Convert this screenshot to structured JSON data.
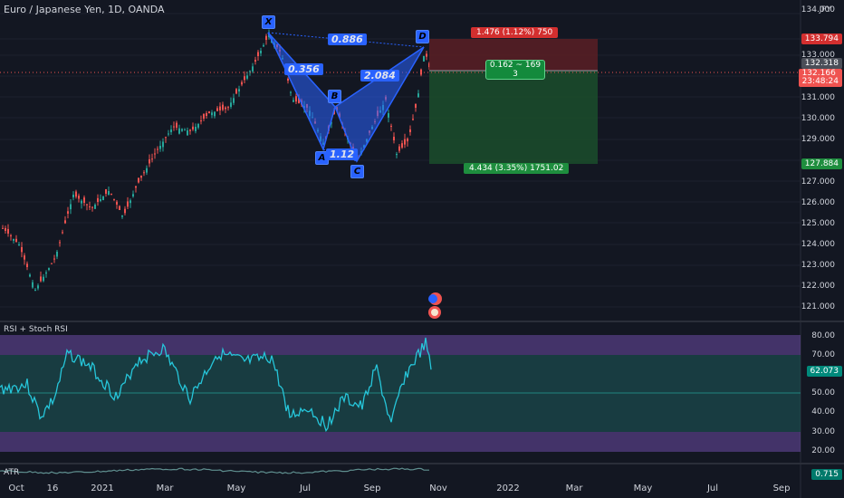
{
  "header": {
    "title": "Euro / Japanese Yen, 1D, OANDA",
    "currency": "JPY"
  },
  "price_axis": {
    "labels": [
      "121.000",
      "122.000",
      "123.000",
      "124.000",
      "125.000",
      "126.000",
      "127.000",
      "128.000",
      "129.000",
      "130.000",
      "131.000",
      "133.000"
    ],
    "top_label": "134.000",
    "target_tag": "133.794",
    "last_price_tag": "132.318",
    "open_tag": "132.166",
    "countdown_tag": "23:48:24",
    "stop_tag": "127.884"
  },
  "time_axis": {
    "labels": [
      "Oct",
      "16",
      "2021",
      "Mar",
      "May",
      "Jul",
      "Sep",
      "Nov",
      "2022",
      "Mar",
      "May",
      "Jul",
      "Sep"
    ]
  },
  "pattern": {
    "points": [
      "X",
      "A",
      "B",
      "C",
      "D"
    ],
    "ratios": {
      "xb": "0.886",
      "xa": "0.356",
      "bd": "2.084",
      "ac": "1.12"
    }
  },
  "position": {
    "stop_text": "1.476 (1.12%) 750",
    "mid_text_line1": "0.162 ~ 169",
    "mid_text_line2": "3",
    "target_text": "4.434 (3.35%) 1751.02"
  },
  "rsi_pane": {
    "label": "RSI + Stoch RSI",
    "axis_labels": [
      "80.00",
      "70.00",
      "50.00",
      "40.00",
      "30.00",
      "20.00"
    ],
    "value_tag": "62.073"
  },
  "atr_pane": {
    "label": "ATR",
    "value_tag": "0.715"
  },
  "colors": {
    "background": "#131722",
    "pattern_fill": "#2962ff",
    "stop_zone": "#6b1f24",
    "target_zone": "#1a4a2a",
    "rsi_line": "#26c6da"
  }
}
